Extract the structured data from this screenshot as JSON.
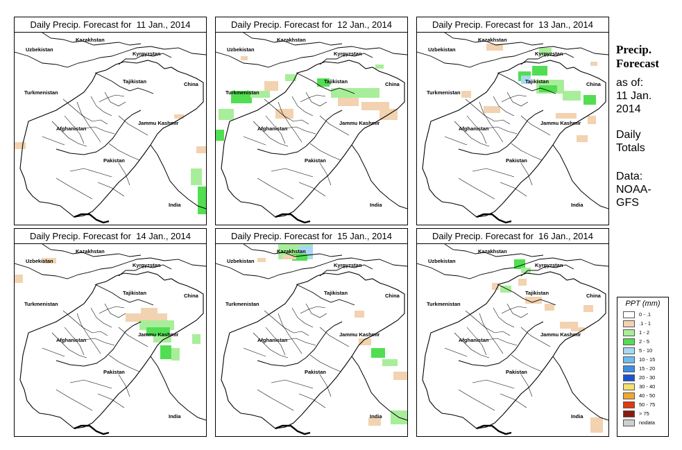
{
  "panels": [
    {
      "title": "Daily Precip. Forecast for  11 Jan., 2014"
    },
    {
      "title": "Daily Precip. Forecast for  12 Jan., 2014"
    },
    {
      "title": "Daily Precip. Forecast for  13 Jan., 2014"
    },
    {
      "title": "Daily Precip. Forecast for  14 Jan., 2014"
    },
    {
      "title": "Daily Precip. Forecast for  15 Jan., 2014"
    },
    {
      "title": "Daily Precip. Forecast for  16 Jan., 2014"
    }
  ],
  "map_labels": {
    "kazakhstan": "Kazakhstan",
    "uzbekistan": "Uzbekistan",
    "kyrgyzstan": "Kyrgyzstan",
    "tajikistan": "Tajikistan",
    "turkmenistan": "Turkmenistan",
    "china": "China",
    "afghanistan": "Afghanistan",
    "jammu_kashmir": "Jammu Kashmir",
    "pakistan": "Pakistan",
    "india": "India"
  },
  "side": {
    "title_line1": "Precip.",
    "title_line2": "Forecast",
    "asof_line1": "as of:",
    "asof_line2": "11 Jan.",
    "asof_line3": "2014",
    "totals_line1": "Daily",
    "totals_line2": "Totals",
    "data_line1": "Data:",
    "data_line2": "NOAA-",
    "data_line3": "GFS"
  },
  "legend": {
    "title": "PPT (mm)",
    "items": [
      {
        "label": "0 - .1",
        "color": "#ffffff"
      },
      {
        "label": ".1 - 1",
        "color": "#f2d2b0"
      },
      {
        "label": "1 - 2",
        "color": "#a8ee9a"
      },
      {
        "label": "2 - 5",
        "color": "#52de52"
      },
      {
        "label": "5 - 10",
        "color": "#a8d8f2"
      },
      {
        "label": "10 - 15",
        "color": "#6cbcf0"
      },
      {
        "label": "15 - 20",
        "color": "#3c8ee4"
      },
      {
        "label": "20 - 30",
        "color": "#1a52d6"
      },
      {
        "label": "30 - 40",
        "color": "#f4e070"
      },
      {
        "label": "40 - 50",
        "color": "#f4a62a"
      },
      {
        "label": "50 - 75",
        "color": "#e03a10"
      },
      {
        "label": "> 75",
        "color": "#8a1a0e"
      },
      {
        "label": "nodata",
        "color": "#cfcfcf"
      }
    ]
  }
}
